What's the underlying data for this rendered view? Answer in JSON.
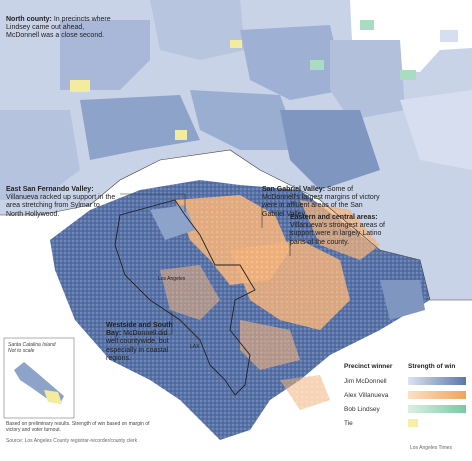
{
  "annotations": {
    "north": {
      "title": "North county:",
      "text": "In precincts where Lindsey came out ahead, McDonnell was a close second."
    },
    "sfv": {
      "title": "East San Fernando Valley:",
      "text": "Villanueva racked up support in the area stretching from Sylmar to North Hollywood."
    },
    "sgv": {
      "title": "San Gabriel Valley:",
      "text": "Some of McDonnell's largest margins of victory were in affluent areas of the San Gabriel Valley."
    },
    "east": {
      "title": "Eastern and central areas:",
      "text": "Villanueva's strongest areas of support were in largely Latino parts of the county."
    },
    "west": {
      "title": "Westside and South Bay:",
      "text": "McDonnell did well countywide, but especially in coastal regions."
    }
  },
  "places": {
    "los_angeles": "Los Angeles",
    "lax": "LAX",
    "catalina": "Santa Catalina Island",
    "catalina_sub": "Not to scale"
  },
  "legend": {
    "winner_header": "Precinct winner",
    "strength_header": "Strength of win",
    "items": [
      {
        "label": "Jim McDonnell",
        "color_light": "#dbe3f0",
        "color_dark": "#5a77ab"
      },
      {
        "label": "Alex Villanueva",
        "color_light": "#fbe0c4",
        "color_dark": "#f0a45a"
      },
      {
        "label": "Bob Lindsey",
        "color_light": "#d9efe4",
        "color_dark": "#79c9a4"
      },
      {
        "label": "Tie",
        "color_light": "#f6efa4",
        "color_dark": "#f6efa4"
      }
    ]
  },
  "footnote": "Based on preliminary results. Strength of win based on margin of victory and voter turnout.",
  "source": "Source: Los Angeles County registrar-recorder/county clerk",
  "credit": "Los Angeles Times",
  "colors": {
    "mcdonnell_dark": "#4d6aa0",
    "mcdonnell_mid": "#8ea3c9",
    "mcdonnell_light": "#c8d2e6",
    "villanueva": "#f2b27a",
    "lindsey": "#a9dcc3",
    "tie": "#f3ec9c"
  }
}
